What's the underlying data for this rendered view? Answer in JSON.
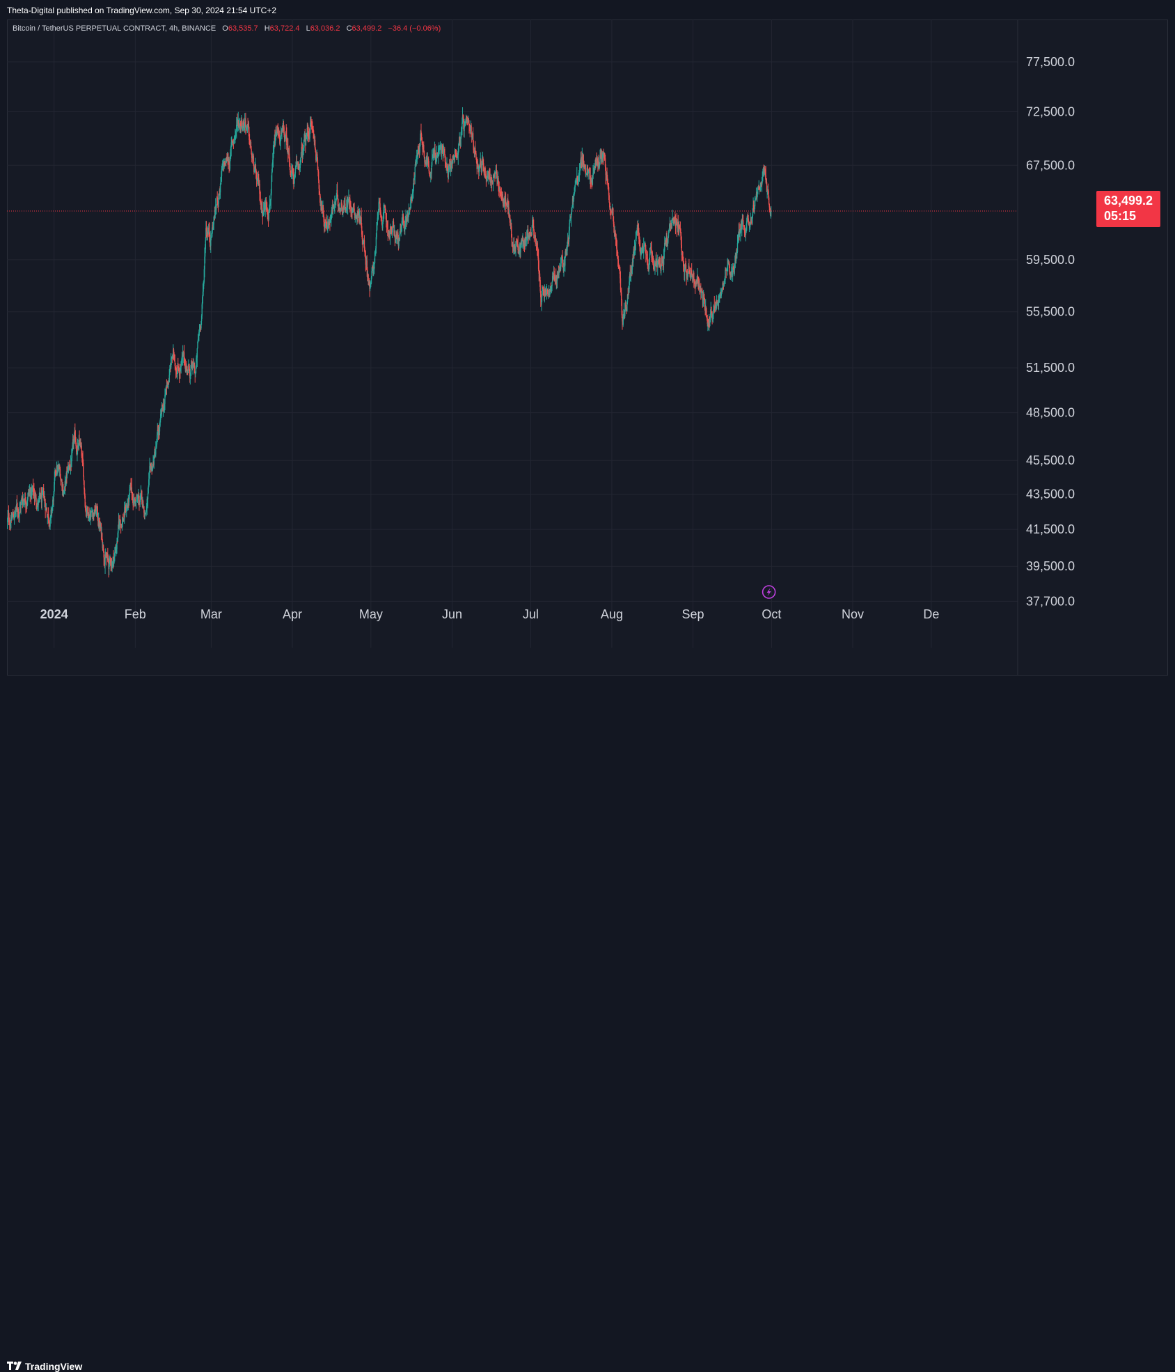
{
  "publisher_line": "Theta-Digital published on TradingView.com, Sep 30, 2024 21:54 UTC+2",
  "legend": {
    "symbol": "Bitcoin / TetherUS PERPETUAL CONTRACT, 4h, BINANCE",
    "open_label": "O",
    "open": "63,535.7",
    "high_label": "H",
    "high": "63,722.4",
    "low_label": "L",
    "low": "63,036.2",
    "close_label": "C",
    "close": "63,499.2",
    "change": "−36.4 (−0.06%)"
  },
  "price_label": {
    "price": "63,499.2",
    "countdown": "05:15"
  },
  "footer": {
    "brand": "TradingView"
  },
  "colors": {
    "up": "#26a69a",
    "down": "#ef5350",
    "last_price": "#f23645",
    "background": "#161a25",
    "grid": "#232632"
  },
  "chart_data": {
    "type": "candlestick",
    "title": "Bitcoin / TetherUS PERPETUAL CONTRACT, 4h, BINANCE",
    "scale": "log",
    "ylim": [
      35500,
      80500
    ],
    "y_ticks": [
      77500,
      72500,
      67500,
      59500,
      55500,
      51500,
      48500,
      45500,
      43500,
      41500,
      39500,
      37700
    ],
    "y_tick_labels": [
      "77,500.0",
      "72,500.0",
      "67,500.0",
      "59,500.0",
      "55,500.0",
      "51,500.0",
      "48,500.0",
      "45,500.0",
      "43,500.0",
      "41,500.0",
      "39,500.0",
      "37,700.0"
    ],
    "x_labels": [
      "2024",
      "Feb",
      "Mar",
      "Apr",
      "May",
      "Jun",
      "Jul",
      "Aug",
      "Sep",
      "Oct",
      "Nov",
      "De"
    ],
    "x_range": [
      "2023-12-14",
      "2025-01-03"
    ],
    "last_price": 63499.2,
    "last_date": "2024-09-30",
    "path_keypoints": [
      {
        "date": "2023-12-14",
        "price": 41800
      },
      {
        "date": "2023-12-18",
        "price": 42600
      },
      {
        "date": "2023-12-22",
        "price": 43900
      },
      {
        "date": "2023-12-27",
        "price": 42900
      },
      {
        "date": "2023-12-31",
        "price": 42300
      },
      {
        "date": "2024-01-02",
        "price": 44800
      },
      {
        "date": "2024-01-05",
        "price": 43900
      },
      {
        "date": "2024-01-09",
        "price": 46300
      },
      {
        "date": "2024-01-11",
        "price": 46200
      },
      {
        "date": "2024-01-13",
        "price": 42900
      },
      {
        "date": "2024-01-17",
        "price": 42700
      },
      {
        "date": "2024-01-19",
        "price": 41300
      },
      {
        "date": "2024-01-22",
        "price": 39400
      },
      {
        "date": "2024-01-24",
        "price": 40100
      },
      {
        "date": "2024-01-26",
        "price": 41800
      },
      {
        "date": "2024-01-30",
        "price": 43300
      },
      {
        "date": "2024-02-05",
        "price": 42700
      },
      {
        "date": "2024-02-08",
        "price": 45300
      },
      {
        "date": "2024-02-12",
        "price": 48800
      },
      {
        "date": "2024-02-15",
        "price": 52100
      },
      {
        "date": "2024-02-20",
        "price": 51700
      },
      {
        "date": "2024-02-24",
        "price": 51000
      },
      {
        "date": "2024-02-27",
        "price": 57000
      },
      {
        "date": "2024-02-28",
        "price": 62500
      },
      {
        "date": "2024-03-01",
        "price": 61800
      },
      {
        "date": "2024-03-05",
        "price": 66500
      },
      {
        "date": "2024-03-08",
        "price": 68200
      },
      {
        "date": "2024-03-11",
        "price": 71500
      },
      {
        "date": "2024-03-14",
        "price": 72300
      },
      {
        "date": "2024-03-17",
        "price": 67300
      },
      {
        "date": "2024-03-20",
        "price": 63800
      },
      {
        "date": "2024-03-23",
        "price": 64500
      },
      {
        "date": "2024-03-26",
        "price": 70000
      },
      {
        "date": "2024-03-29",
        "price": 69800
      },
      {
        "date": "2024-04-02",
        "price": 66100
      },
      {
        "date": "2024-04-05",
        "price": 68500
      },
      {
        "date": "2024-04-08",
        "price": 71500
      },
      {
        "date": "2024-04-10",
        "price": 68900
      },
      {
        "date": "2024-04-13",
        "price": 62500
      },
      {
        "date": "2024-04-16",
        "price": 63500
      },
      {
        "date": "2024-04-20",
        "price": 64600
      },
      {
        "date": "2024-04-24",
        "price": 64300
      },
      {
        "date": "2024-04-27",
        "price": 63100
      },
      {
        "date": "2024-05-01",
        "price": 57300
      },
      {
        "date": "2024-05-04",
        "price": 63300
      },
      {
        "date": "2024-05-08",
        "price": 62000
      },
      {
        "date": "2024-05-12",
        "price": 60900
      },
      {
        "date": "2024-05-15",
        "price": 63200
      },
      {
        "date": "2024-05-20",
        "price": 70500
      },
      {
        "date": "2024-05-23",
        "price": 67800
      },
      {
        "date": "2024-05-27",
        "price": 68700
      },
      {
        "date": "2024-06-01",
        "price": 67700
      },
      {
        "date": "2024-06-05",
        "price": 71000
      },
      {
        "date": "2024-06-08",
        "price": 69300
      },
      {
        "date": "2024-06-12",
        "price": 67800
      },
      {
        "date": "2024-06-17",
        "price": 66200
      },
      {
        "date": "2024-06-22",
        "price": 64200
      },
      {
        "date": "2024-06-24",
        "price": 60800
      },
      {
        "date": "2024-06-28",
        "price": 61000
      },
      {
        "date": "2024-07-02",
        "price": 62500
      },
      {
        "date": "2024-07-05",
        "price": 56500
      },
      {
        "date": "2024-07-08",
        "price": 56700
      },
      {
        "date": "2024-07-14",
        "price": 59500
      },
      {
        "date": "2024-07-17",
        "price": 64700
      },
      {
        "date": "2024-07-21",
        "price": 68000
      },
      {
        "date": "2024-07-24",
        "price": 65900
      },
      {
        "date": "2024-07-29",
        "price": 69300
      },
      {
        "date": "2024-07-31",
        "price": 65800
      },
      {
        "date": "2024-08-03",
        "price": 61000
      },
      {
        "date": "2024-08-05",
        "price": 54500
      },
      {
        "date": "2024-08-08",
        "price": 58000
      },
      {
        "date": "2024-08-11",
        "price": 61500
      },
      {
        "date": "2024-08-14",
        "price": 58700
      },
      {
        "date": "2024-08-18",
        "price": 59500
      },
      {
        "date": "2024-08-22",
        "price": 60800
      },
      {
        "date": "2024-08-25",
        "price": 64200
      },
      {
        "date": "2024-08-28",
        "price": 59700
      },
      {
        "date": "2024-09-01",
        "price": 58600
      },
      {
        "date": "2024-09-05",
        "price": 56200
      },
      {
        "date": "2024-09-07",
        "price": 54000
      },
      {
        "date": "2024-09-11",
        "price": 57500
      },
      {
        "date": "2024-09-14",
        "price": 60000
      },
      {
        "date": "2024-09-16",
        "price": 58200
      },
      {
        "date": "2024-09-20",
        "price": 63000
      },
      {
        "date": "2024-09-23",
        "price": 63500
      },
      {
        "date": "2024-09-27",
        "price": 65800
      },
      {
        "date": "2024-09-29",
        "price": 65500
      },
      {
        "date": "2024-09-30",
        "price": 63499.2
      }
    ]
  }
}
